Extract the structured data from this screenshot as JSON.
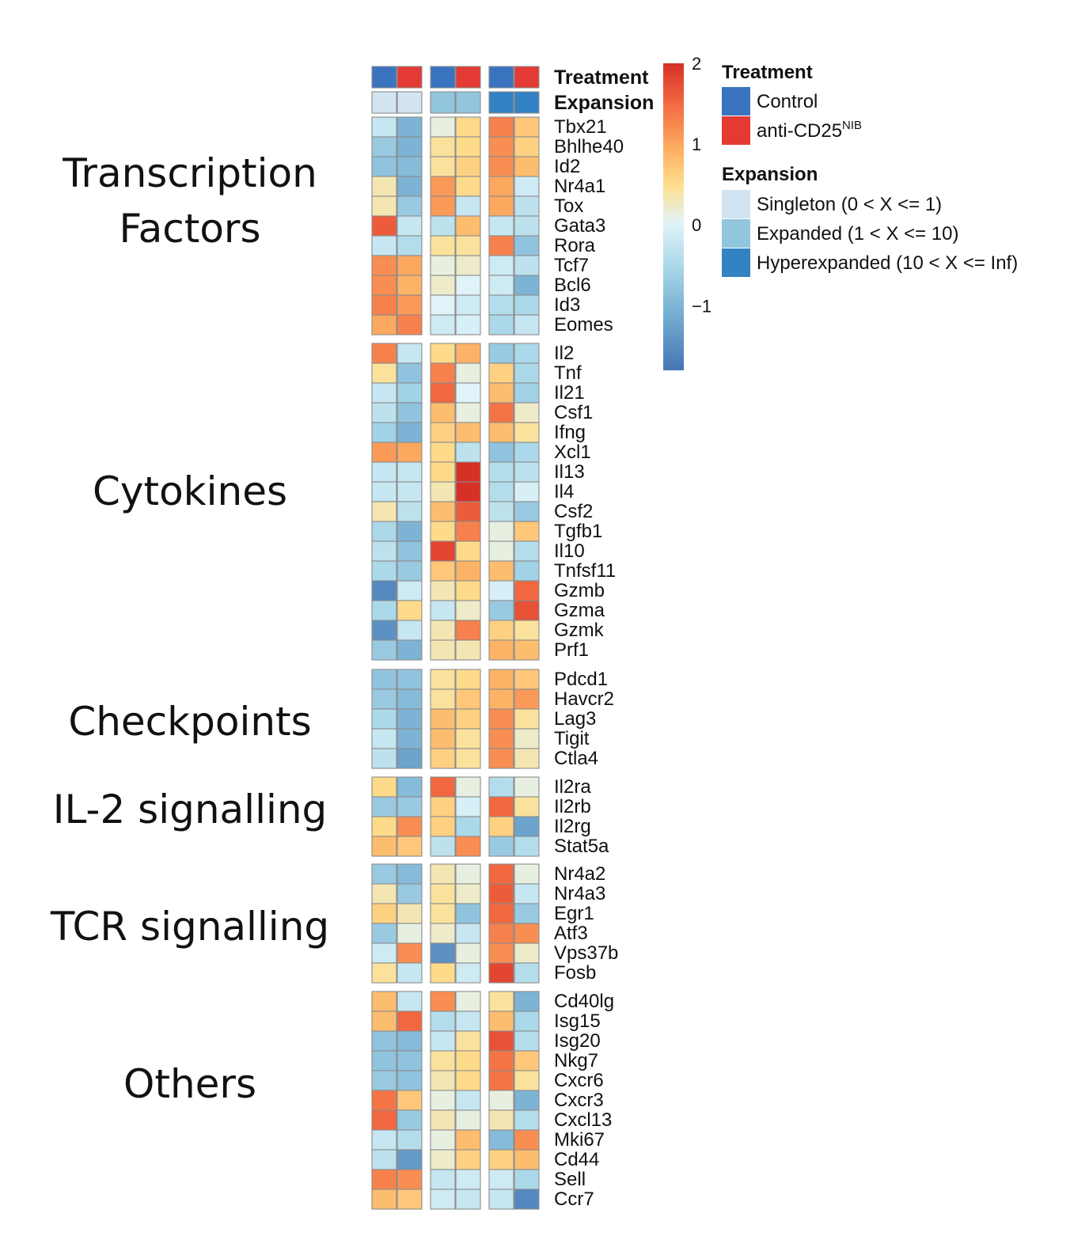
{
  "chart_data": {
    "type": "heatmap",
    "column_annotations": {
      "treatment_label": "Treatment",
      "expansion_label": "Expansion",
      "treatment": [
        "Control",
        "anti-CD25",
        "Control",
        "anti-CD25",
        "Control",
        "anti-CD25"
      ],
      "expansion": [
        "Singleton",
        "Singleton",
        "Expanded",
        "Expanded",
        "Hyperexpanded",
        "Hyperexpanded"
      ]
    },
    "colorbar": {
      "min": -1.8,
      "max": 2,
      "ticks": [
        "2",
        "1",
        "0",
        "−1"
      ],
      "tick_values": [
        2,
        1,
        0,
        -1
      ],
      "colors": [
        "#d73027",
        "#f46d43",
        "#fdae61",
        "#fee090",
        "#e0f3f8",
        "#abd9e9",
        "#74add1",
        "#4575b4"
      ]
    },
    "legend": {
      "treatment_title": "Treatment",
      "treatment_items": [
        {
          "label": "Control",
          "sup": "",
          "color": "#3a74c0"
        },
        {
          "label": "anti-CD25",
          "sup": "NIB",
          "color": "#e43a34"
        }
      ],
      "expansion_title": "Expansion",
      "expansion_items": [
        {
          "label": "Singleton (0 < X <= 1)",
          "color": "#d2e4f0"
        },
        {
          "label": "Expanded (1 < X <= 10)",
          "color": "#92c5de"
        },
        {
          "label": "Hyperexpanded (10 < X <= Inf)",
          "color": "#3282c4"
        }
      ]
    },
    "groups": [
      {
        "title": [
          "Transcription",
          "Factors"
        ],
        "genes": [
          {
            "name": "Tbx21",
            "values": [
              -0.3,
              -1.1,
              0.1,
              0.5,
              1.3,
              0.7
            ]
          },
          {
            "name": "Bhlhe40",
            "values": [
              -0.8,
              -1.1,
              0.4,
              0.5,
              1.2,
              0.6
            ]
          },
          {
            "name": "Id2",
            "values": [
              -0.9,
              -1.0,
              0.4,
              0.6,
              1.2,
              0.8
            ]
          },
          {
            "name": "Nr4a1",
            "values": [
              0.3,
              -1.1,
              1.1,
              0.5,
              1.0,
              -0.2
            ]
          },
          {
            "name": "Tox",
            "values": [
              0.3,
              -0.8,
              1.1,
              -0.3,
              1.0,
              -0.4
            ]
          },
          {
            "name": "Gata3",
            "values": [
              1.6,
              -0.3,
              -0.4,
              0.8,
              -0.3,
              -0.4
            ]
          },
          {
            "name": "Rora",
            "values": [
              -0.3,
              -0.5,
              0.4,
              0.4,
              1.3,
              -0.9
            ]
          },
          {
            "name": "Tcf7",
            "values": [
              1.2,
              1.0,
              0.1,
              0.2,
              -0.2,
              -0.4
            ]
          },
          {
            "name": "Bcl6",
            "values": [
              1.2,
              0.9,
              0.2,
              0.0,
              -0.2,
              -1.1
            ]
          },
          {
            "name": "Id3",
            "values": [
              1.3,
              1.1,
              0.0,
              -0.2,
              -0.5,
              -0.6
            ]
          },
          {
            "name": "Eomes",
            "values": [
              1.0,
              1.3,
              -0.2,
              -0.1,
              -0.6,
              -0.3
            ]
          }
        ]
      },
      {
        "title": [
          "Cytokines"
        ],
        "genes": [
          {
            "name": "Il2",
            "values": [
              1.3,
              -0.3,
              0.5,
              0.9,
              -0.8,
              -0.6
            ]
          },
          {
            "name": "Tnf",
            "values": [
              0.4,
              -0.9,
              1.3,
              0.1,
              0.6,
              -0.6
            ]
          },
          {
            "name": "Il21",
            "values": [
              -0.3,
              -0.7,
              1.5,
              0.0,
              0.8,
              -0.7
            ]
          },
          {
            "name": "Csf1",
            "values": [
              -0.4,
              -0.9,
              0.8,
              0.1,
              1.4,
              0.2
            ]
          },
          {
            "name": "Ifng",
            "values": [
              -0.7,
              -1.1,
              0.6,
              0.8,
              0.8,
              0.4
            ]
          },
          {
            "name": "Xcl1",
            "values": [
              1.1,
              1.0,
              0.5,
              -0.4,
              -0.9,
              -0.6
            ]
          },
          {
            "name": "Il13",
            "values": [
              -0.3,
              -0.3,
              0.5,
              2.0,
              -0.5,
              -0.4
            ]
          },
          {
            "name": "Il4",
            "values": [
              -0.3,
              -0.3,
              0.3,
              2.0,
              -0.5,
              -0.1
            ]
          },
          {
            "name": "Csf2",
            "values": [
              0.3,
              -0.4,
              0.8,
              1.6,
              -0.4,
              -0.8
            ]
          },
          {
            "name": "Tgfb1",
            "values": [
              -0.6,
              -1.1,
              0.5,
              1.3,
              0.1,
              0.7
            ]
          },
          {
            "name": "Il10",
            "values": [
              -0.4,
              -0.9,
              1.8,
              0.5,
              0.1,
              -0.5
            ]
          },
          {
            "name": "Tnfsf11",
            "values": [
              -0.6,
              -0.8,
              0.7,
              0.9,
              0.8,
              -0.7
            ]
          },
          {
            "name": "Gzmb",
            "values": [
              -1.6,
              -0.2,
              0.3,
              0.5,
              -0.1,
              1.5
            ]
          },
          {
            "name": "Gzma",
            "values": [
              -0.6,
              0.5,
              -0.3,
              0.2,
              -0.8,
              1.7
            ]
          },
          {
            "name": "Gzmk",
            "values": [
              -1.5,
              -0.3,
              0.3,
              1.3,
              0.6,
              0.4
            ]
          },
          {
            "name": "Prf1",
            "values": [
              -0.8,
              -1.1,
              0.3,
              0.3,
              0.9,
              0.8
            ]
          }
        ]
      },
      {
        "title": [
          "Checkpoints"
        ],
        "genes": [
          {
            "name": "Pdcd1",
            "values": [
              -0.9,
              -0.9,
              0.4,
              0.5,
              0.9,
              0.7
            ]
          },
          {
            "name": "Havcr2",
            "values": [
              -0.8,
              -1.0,
              0.4,
              0.7,
              0.9,
              1.1
            ]
          },
          {
            "name": "Lag3",
            "values": [
              -0.6,
              -1.1,
              0.8,
              0.6,
              1.2,
              0.4
            ]
          },
          {
            "name": "Tigit",
            "values": [
              -0.3,
              -1.1,
              0.8,
              0.4,
              1.2,
              0.2
            ]
          },
          {
            "name": "Ctla4",
            "values": [
              -0.4,
              -1.3,
              0.6,
              0.4,
              1.2,
              0.3
            ]
          }
        ]
      },
      {
        "title": [
          "IL-2 signalling"
        ],
        "genes": [
          {
            "name": "Il2ra",
            "values": [
              0.5,
              -1.0,
              1.5,
              0.1,
              -0.5,
              0.1
            ]
          },
          {
            "name": "Il2rb",
            "values": [
              -0.8,
              -0.8,
              0.6,
              -0.1,
              1.5,
              0.4
            ]
          },
          {
            "name": "Il2rg",
            "values": [
              0.5,
              1.2,
              0.6,
              -0.6,
              0.6,
              -1.3
            ]
          },
          {
            "name": "Stat5a",
            "values": [
              0.8,
              0.7,
              -0.4,
              1.2,
              -0.8,
              -0.5
            ]
          }
        ]
      },
      {
        "title": [
          "TCR signalling"
        ],
        "genes": [
          {
            "name": "Nr4a2",
            "values": [
              -0.8,
              -1.0,
              0.3,
              0.1,
              1.5,
              0.1
            ]
          },
          {
            "name": "Nr4a3",
            "values": [
              0.3,
              -0.8,
              0.4,
              0.2,
              1.6,
              -0.3
            ]
          },
          {
            "name": "Egr1",
            "values": [
              0.6,
              0.3,
              0.4,
              -0.9,
              1.5,
              -0.8
            ]
          },
          {
            "name": "Atf3",
            "values": [
              -0.8,
              0.1,
              0.2,
              -0.3,
              1.3,
              1.2
            ]
          },
          {
            "name": "Vps37b",
            "values": [
              -0.2,
              1.2,
              -1.5,
              0.1,
              1.2,
              0.2
            ]
          },
          {
            "name": "Fosb",
            "values": [
              0.4,
              -0.3,
              0.5,
              -0.2,
              1.8,
              -0.5
            ]
          }
        ]
      },
      {
        "title": [
          "Others"
        ],
        "genes": [
          {
            "name": "Cd40lg",
            "values": [
              0.8,
              -0.3,
              1.2,
              0.1,
              0.4,
              -1.1
            ]
          },
          {
            "name": "Isg15",
            "values": [
              0.8,
              1.5,
              -0.5,
              -0.3,
              0.8,
              -0.6
            ]
          },
          {
            "name": "Isg20",
            "values": [
              -0.9,
              -1.0,
              -0.3,
              0.4,
              1.7,
              -0.5
            ]
          },
          {
            "name": "Nkg7",
            "values": [
              -0.9,
              -0.9,
              0.4,
              0.5,
              1.4,
              0.7
            ]
          },
          {
            "name": "Cxcr6",
            "values": [
              -0.8,
              -0.9,
              0.3,
              0.5,
              1.4,
              0.4
            ]
          },
          {
            "name": "Cxcr3",
            "values": [
              1.4,
              0.7,
              0.1,
              -0.3,
              0.1,
              -1.1
            ]
          },
          {
            "name": "Cxcl13",
            "values": [
              1.5,
              -0.8,
              0.3,
              0.1,
              0.3,
              -0.5
            ]
          },
          {
            "name": "Mki67",
            "values": [
              -0.3,
              -0.5,
              0.1,
              0.8,
              -1.0,
              1.2
            ]
          },
          {
            "name": "Cd44",
            "values": [
              -0.4,
              -1.4,
              0.2,
              0.6,
              0.6,
              0.8
            ]
          },
          {
            "name": "Sell",
            "values": [
              1.3,
              1.2,
              -0.3,
              -0.2,
              -0.2,
              -0.6
            ]
          },
          {
            "name": "Ccr7",
            "values": [
              0.8,
              0.7,
              -0.2,
              -0.3,
              -0.3,
              -1.6
            ]
          }
        ]
      }
    ]
  }
}
